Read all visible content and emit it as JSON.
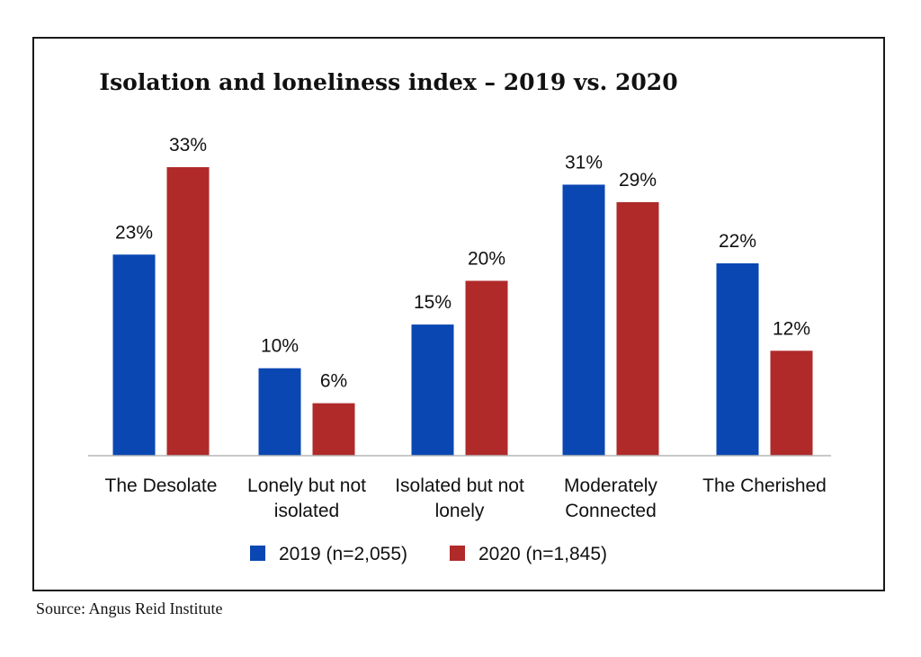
{
  "chart_data": {
    "type": "bar",
    "title": "Isolation and loneliness index – 2019 vs. 2020",
    "categories": [
      [
        "The Desolate"
      ],
      [
        "Lonely but not",
        "isolated"
      ],
      [
        "Isolated but not",
        "lonely"
      ],
      [
        "Moderately",
        "Connected"
      ],
      [
        "The Cherished"
      ]
    ],
    "series": [
      {
        "name": "2019 (n=2,055)",
        "color": "#0a47b3",
        "values": [
          23,
          10,
          15,
          31,
          22
        ],
        "labels": [
          "23%",
          "10%",
          "15%",
          "31%",
          "22%"
        ]
      },
      {
        "name": "2020 (n=1,845)",
        "color": "#b02a2a",
        "values": [
          33,
          6,
          20,
          29,
          12
        ],
        "labels": [
          "33%",
          "6%",
          "20%",
          "29%",
          "12%"
        ]
      }
    ],
    "ylim": [
      0,
      33
    ],
    "grid": false,
    "legend": "bottom"
  },
  "source": "Source: Angus Reid Institute"
}
